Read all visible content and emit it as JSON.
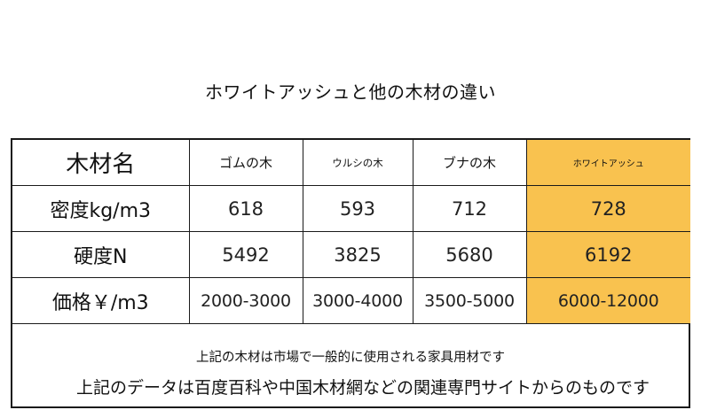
{
  "title": "ホワイトアッシュと他の木材の違い",
  "table": {
    "header": {
      "label": "木材名",
      "columns": [
        "ゴムの木",
        "ウルシの木",
        "ブナの木",
        "ホワイトアッシュ"
      ]
    },
    "rows": [
      {
        "label": "密度kg/m3",
        "values": [
          "618",
          "593",
          "712",
          "728"
        ]
      },
      {
        "label": "硬度N",
        "values": [
          "5492",
          "3825",
          "5680",
          "6192"
        ]
      },
      {
        "label": "価格￥/m3",
        "values": [
          "2000-3000",
          "3000-4000",
          "3500-5000",
          "6000-12000"
        ]
      }
    ],
    "highlight_color": "#f9c24f"
  },
  "notes": {
    "line1": "上記の木材は市場で一般的に使用される家具用材です",
    "line2": "上記のデータは百度百科や中国木材網などの関連専門サイトからのものです"
  }
}
